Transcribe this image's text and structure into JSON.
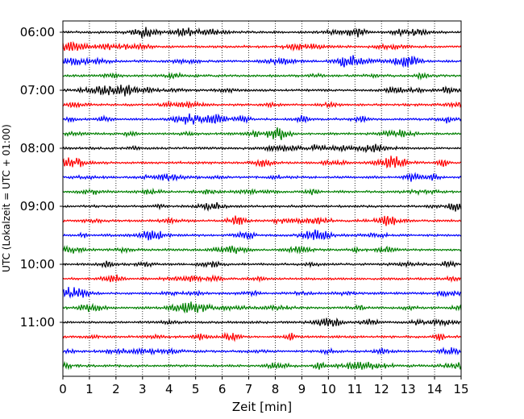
{
  "chart_data": {
    "type": "line",
    "title": "",
    "xlabel": "Zeit  [min]",
    "ylabel": "UTC (Lokalzeit = UTC + 01:00)",
    "xlim": [
      0,
      15
    ],
    "x_ticks": [
      0,
      1,
      2,
      3,
      4,
      5,
      6,
      7,
      8,
      9,
      10,
      11,
      12,
      13,
      14,
      15
    ],
    "y_tick_labels": [
      "06:00",
      "07:00",
      "08:00",
      "09:00",
      "10:00",
      "11:00"
    ],
    "minutes_per_trace": 15,
    "traces_per_hour": 4,
    "trace_count": 24,
    "grid": "vertical dotted lines at each minute",
    "trace_colors": [
      "#000000",
      "#ff0000",
      "#0000ff",
      "#008000"
    ]
  }
}
